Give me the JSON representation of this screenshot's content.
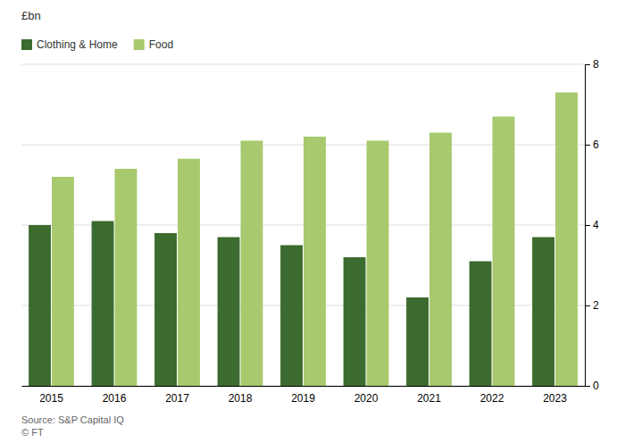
{
  "chart_data": {
    "type": "bar",
    "y_label": "£bn",
    "categories": [
      "2015",
      "2016",
      "2017",
      "2018",
      "2019",
      "2020",
      "2021",
      "2022",
      "2023"
    ],
    "series": [
      {
        "name": "Clothing & Home",
        "color": "#3b6b2e",
        "values": [
          4.0,
          4.1,
          3.8,
          3.7,
          3.5,
          3.2,
          2.2,
          3.1,
          3.7
        ]
      },
      {
        "name": "Food",
        "color": "#a8c96e",
        "values": [
          5.2,
          5.4,
          5.65,
          6.1,
          6.2,
          6.1,
          6.3,
          6.7,
          7.3
        ]
      }
    ],
    "ylim": [
      0,
      8
    ],
    "yticks": [
      0,
      2,
      4,
      6,
      8
    ],
    "grid": true,
    "legend": "upper left",
    "annotations": [
      "Source: S&P Capital IQ",
      "© FT"
    ]
  }
}
